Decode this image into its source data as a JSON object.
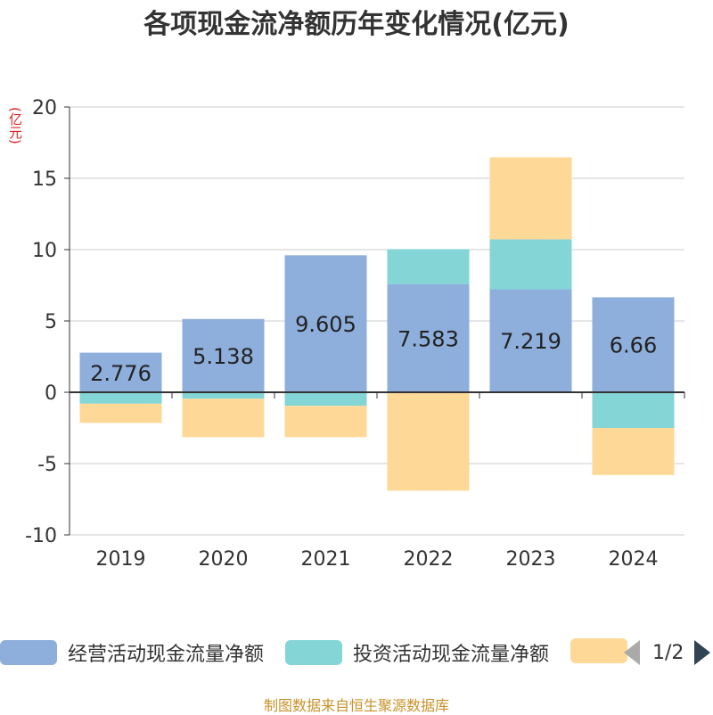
{
  "title": "各项现金流净额历年变化情况(亿元)",
  "unit_label": "(亿元)",
  "colors": {
    "operating": "#8eaedb",
    "investing": "#83d5d6",
    "financing": "#fed897",
    "axis": "#333333",
    "grid": "#cccccc"
  },
  "chart_data": {
    "type": "bar",
    "stacked": true,
    "categories": [
      "2019",
      "2020",
      "2021",
      "2022",
      "2023",
      "2024"
    ],
    "ylim": [
      -10,
      20
    ],
    "yticks": [
      "20",
      "15",
      "10",
      "5",
      "0",
      "-5",
      "-10"
    ],
    "grid": true,
    "legend_position": "bottom",
    "series": [
      {
        "name": "经营活动现金流量净额",
        "values": [
          2.776,
          5.138,
          9.605,
          7.583,
          7.219,
          6.66
        ],
        "labels": [
          "2.776",
          "5.138",
          "9.605",
          "7.583",
          "7.219",
          "6.66"
        ]
      },
      {
        "name": "投资活动现金流量净额",
        "values": [
          -0.8,
          -0.45,
          -0.95,
          2.45,
          3.5,
          -2.5
        ]
      },
      {
        "name": "",
        "values": [
          -1.35,
          -2.7,
          -2.2,
          -6.9,
          5.75,
          -3.3
        ]
      }
    ]
  },
  "legend": {
    "items": [
      "经营活动现金流量净额",
      "投资活动现金流量净额",
      ""
    ],
    "page": "1/2"
  },
  "source": "制图数据来自恒生聚源数据库"
}
